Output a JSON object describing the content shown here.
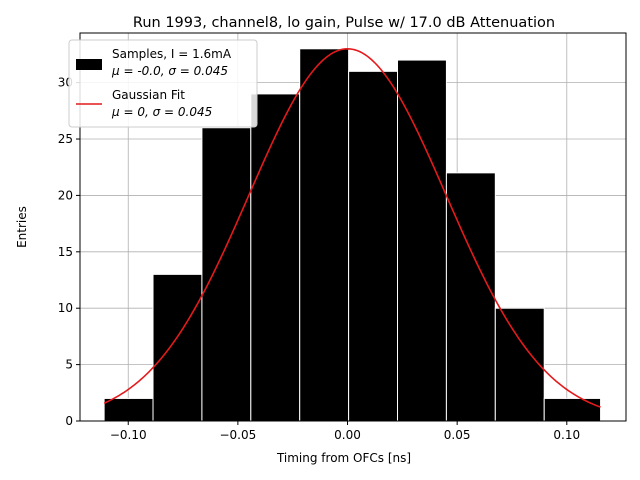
{
  "chart_data": {
    "type": "bar",
    "title": "Run 1993, channel8, lo gain, Pulse w/ 17.0 dB Attenuation",
    "xlabel": "Timing from OFCs [ns]",
    "ylabel": "Entries",
    "xlim": [
      -0.122,
      0.127
    ],
    "ylim": [
      0,
      34.4
    ],
    "xticks": [
      -0.1,
      -0.05,
      0.0,
      0.05,
      0.1
    ],
    "xtick_labels": [
      "−0.10",
      "−0.05",
      "0.00",
      "0.05",
      "0.10"
    ],
    "yticks": [
      0,
      5,
      10,
      15,
      20,
      25,
      30
    ],
    "ytick_labels": [
      "0",
      "5",
      "10",
      "15",
      "20",
      "25",
      "30"
    ],
    "grid": true,
    "legend_position": "top-left",
    "bin_edges": [
      -0.111,
      -0.0887,
      -0.0664,
      -0.0441,
      -0.0218,
      0.0005,
      0.0228,
      0.0451,
      0.0674,
      0.0897,
      0.1154
    ],
    "counts": [
      2,
      13,
      26,
      29,
      33,
      31,
      32,
      22,
      10,
      2
    ],
    "fit": {
      "amplitude": 33.0,
      "mu": 0.0,
      "sigma": 0.045,
      "x_range": [
        -0.111,
        0.1154
      ]
    },
    "series": [
      {
        "name": "Samples, I = 1.6mA",
        "stats": "μ = -0.0, σ = 0.045",
        "color": "#000000"
      },
      {
        "name": "Gaussian Fit",
        "stats": "μ = 0, σ = 0.045",
        "color": "#e41a1c"
      }
    ]
  }
}
